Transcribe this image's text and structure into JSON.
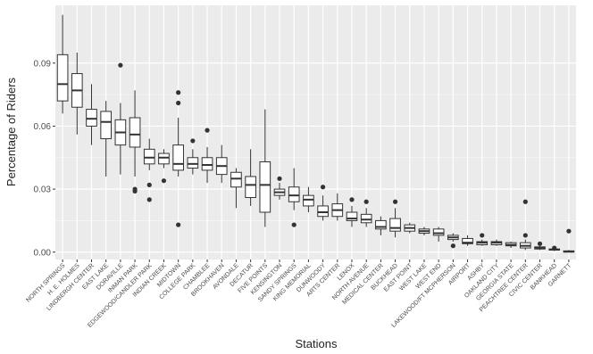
{
  "chart_data": {
    "type": "boxplot",
    "xlabel": "Stations",
    "ylabel": "Percentage of Riders",
    "ylim": [
      -0.0035,
      0.1175
    ],
    "yticks": [
      0.0,
      0.03,
      0.06,
      0.09
    ],
    "ytick_labels": [
      "0.00",
      "0.03",
      "0.06",
      "0.09"
    ],
    "grid": true,
    "colors": {
      "panel": "#ebebeb",
      "grid_major": "#ffffff",
      "box_fill": "#ffffff",
      "box_line": "#333333",
      "outlier": "#333333"
    },
    "categories": [
      "NORTH SPRINGS",
      "H. E. HOLMES",
      "LINDBERGH CENTER",
      "EAST LAKE",
      "DORAVILLE",
      "INMAN PARK",
      "EDGEWOOD/CANDLER PARK",
      "INDIAN CREEK",
      "MIDTOWN",
      "COLLEGE PARK",
      "CHAMBLEE",
      "BROOKHAVEN",
      "AVONDALE",
      "DECATUR",
      "FIVE POINTS",
      "KENSINGTON",
      "SANDY SPRINGS",
      "KING MEMORIAL",
      "DUNWOODY",
      "ARTS CENTER",
      "LENOX",
      "NORTH AVENUE",
      "MEDICAL CENTER",
      "BUCKHEAD",
      "EAST POINT",
      "WEST LAKE",
      "WEST END",
      "LAKEWOOD/FT MCPHERSON",
      "AIRPORT",
      "ASHBY",
      "OAKLAND CITY",
      "GEORGIA STATE",
      "PEACHTREE CENTER",
      "CIVIC CENTER",
      "BANKHEAD",
      "GARNETT"
    ],
    "boxes": [
      {
        "min": 0.066,
        "q1": 0.072,
        "median": 0.08,
        "q3": 0.094,
        "max": 0.113,
        "outliers": []
      },
      {
        "min": 0.056,
        "q1": 0.069,
        "median": 0.077,
        "q3": 0.085,
        "max": 0.095,
        "outliers": []
      },
      {
        "min": 0.051,
        "q1": 0.06,
        "median": 0.0635,
        "q3": 0.068,
        "max": 0.08,
        "outliers": []
      },
      {
        "min": 0.036,
        "q1": 0.054,
        "median": 0.062,
        "q3": 0.067,
        "max": 0.072,
        "outliers": []
      },
      {
        "min": 0.037,
        "q1": 0.051,
        "median": 0.057,
        "q3": 0.063,
        "max": 0.071,
        "outliers": [
          0.089
        ]
      },
      {
        "min": 0.036,
        "q1": 0.05,
        "median": 0.056,
        "q3": 0.064,
        "max": 0.077,
        "outliers": [
          0.03,
          0.029
        ]
      },
      {
        "min": 0.039,
        "q1": 0.042,
        "median": 0.045,
        "q3": 0.049,
        "max": 0.054,
        "outliers": [
          0.032,
          0.025
        ]
      },
      {
        "min": 0.04,
        "q1": 0.042,
        "median": 0.045,
        "q3": 0.047,
        "max": 0.049,
        "outliers": [
          0.034
        ]
      },
      {
        "min": 0.036,
        "q1": 0.039,
        "median": 0.042,
        "q3": 0.051,
        "max": 0.064,
        "outliers": [
          0.076,
          0.071,
          0.013
        ]
      },
      {
        "min": 0.037,
        "q1": 0.04,
        "median": 0.042,
        "q3": 0.045,
        "max": 0.049,
        "outliers": [
          0.053
        ]
      },
      {
        "min": 0.033,
        "q1": 0.039,
        "median": 0.0415,
        "q3": 0.045,
        "max": 0.05,
        "outliers": [
          0.058
        ]
      },
      {
        "min": 0.033,
        "q1": 0.037,
        "median": 0.041,
        "q3": 0.045,
        "max": 0.051,
        "outliers": []
      },
      {
        "min": 0.021,
        "q1": 0.031,
        "median": 0.035,
        "q3": 0.038,
        "max": 0.04,
        "outliers": []
      },
      {
        "min": 0.022,
        "q1": 0.026,
        "median": 0.032,
        "q3": 0.036,
        "max": 0.049,
        "outliers": []
      },
      {
        "min": 0.012,
        "q1": 0.019,
        "median": 0.032,
        "q3": 0.043,
        "max": 0.068,
        "outliers": []
      },
      {
        "min": 0.025,
        "q1": 0.027,
        "median": 0.0285,
        "q3": 0.03,
        "max": 0.033,
        "outliers": [
          0.035
        ]
      },
      {
        "min": 0.02,
        "q1": 0.024,
        "median": 0.027,
        "q3": 0.031,
        "max": 0.04,
        "outliers": [
          0.013
        ]
      },
      {
        "min": 0.019,
        "q1": 0.022,
        "median": 0.025,
        "q3": 0.027,
        "max": 0.031,
        "outliers": []
      },
      {
        "min": 0.015,
        "q1": 0.017,
        "median": 0.019,
        "q3": 0.022,
        "max": 0.027,
        "outliers": [
          0.031
        ]
      },
      {
        "min": 0.015,
        "q1": 0.017,
        "median": 0.02,
        "q3": 0.023,
        "max": 0.028,
        "outliers": []
      },
      {
        "min": 0.012,
        "q1": 0.015,
        "median": 0.016,
        "q3": 0.019,
        "max": 0.022,
        "outliers": [
          0.025
        ]
      },
      {
        "min": 0.012,
        "q1": 0.014,
        "median": 0.0155,
        "q3": 0.018,
        "max": 0.021,
        "outliers": [
          0.024
        ]
      },
      {
        "min": 0.008,
        "q1": 0.011,
        "median": 0.012,
        "q3": 0.015,
        "max": 0.017,
        "outliers": []
      },
      {
        "min": 0.007,
        "q1": 0.01,
        "median": 0.0115,
        "q3": 0.016,
        "max": 0.021,
        "outliers": [
          0.024
        ]
      },
      {
        "min": 0.009,
        "q1": 0.01,
        "median": 0.0115,
        "q3": 0.013,
        "max": 0.014,
        "outliers": []
      },
      {
        "min": 0.008,
        "q1": 0.009,
        "median": 0.01,
        "q3": 0.011,
        "max": 0.012,
        "outliers": []
      },
      {
        "min": 0.005,
        "q1": 0.008,
        "median": 0.009,
        "q3": 0.011,
        "max": 0.012,
        "outliers": []
      },
      {
        "min": 0.005,
        "q1": 0.006,
        "median": 0.007,
        "q3": 0.008,
        "max": 0.009,
        "outliers": [
          0.003
        ]
      },
      {
        "min": 0.003,
        "q1": 0.004,
        "median": 0.0045,
        "q3": 0.0065,
        "max": 0.008,
        "outliers": []
      },
      {
        "min": 0.003,
        "q1": 0.0035,
        "median": 0.0045,
        "q3": 0.005,
        "max": 0.006,
        "outliers": [
          0.008
        ]
      },
      {
        "min": 0.003,
        "q1": 0.0035,
        "median": 0.0045,
        "q3": 0.005,
        "max": 0.006,
        "outliers": []
      },
      {
        "min": 0.002,
        "q1": 0.003,
        "median": 0.0035,
        "q3": 0.0045,
        "max": 0.005,
        "outliers": []
      },
      {
        "min": 0.001,
        "q1": 0.002,
        "median": 0.003,
        "q3": 0.0045,
        "max": 0.006,
        "outliers": [
          0.024,
          0.008
        ]
      },
      {
        "min": 0.001,
        "q1": 0.0015,
        "median": 0.002,
        "q3": 0.0025,
        "max": 0.003,
        "outliers": [
          0.004
        ]
      },
      {
        "min": 0.0005,
        "q1": 0.001,
        "median": 0.0012,
        "q3": 0.0015,
        "max": 0.0018,
        "outliers": [
          0.002
        ]
      },
      {
        "min": 0.0,
        "q1": 0.0,
        "median": 0.0003,
        "q3": 0.0006,
        "max": 0.001,
        "outliers": [
          0.01
        ]
      }
    ]
  }
}
